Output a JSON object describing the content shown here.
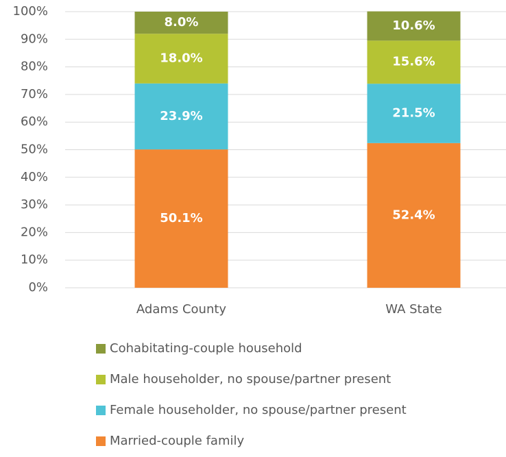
{
  "chart_data": {
    "type": "stacked-bar",
    "categories": [
      "Adams County",
      "WA State"
    ],
    "series": [
      {
        "name": "Married-couple family",
        "color": "#f28733",
        "values": [
          50.1,
          52.4
        ],
        "value_labels": [
          "50.1%",
          "52.4%"
        ]
      },
      {
        "name": "Female householder, no spouse/partner present",
        "color": "#4fc3d6",
        "values": [
          23.9,
          21.5
        ],
        "value_labels": [
          "23.9%",
          "21.5%"
        ]
      },
      {
        "name": "Male householder, no spouse/partner present",
        "color": "#b5c334",
        "values": [
          18.0,
          15.6
        ],
        "value_labels": [
          "18.0%",
          "15.6%"
        ]
      },
      {
        "name": "Cohabitating-couple household",
        "color": "#8a9a3b",
        "values": [
          8.0,
          10.6
        ],
        "value_labels": [
          "8.0%",
          "10.6%"
        ]
      }
    ],
    "ylim": [
      0,
      100
    ],
    "yticks": [
      {
        "value": 0,
        "label": "0%"
      },
      {
        "value": 10,
        "label": "10%"
      },
      {
        "value": 20,
        "label": "20%"
      },
      {
        "value": 30,
        "label": "30%"
      },
      {
        "value": 40,
        "label": "40%"
      },
      {
        "value": 50,
        "label": "50%"
      },
      {
        "value": 60,
        "label": "60%"
      },
      {
        "value": 70,
        "label": "70%"
      },
      {
        "value": 80,
        "label": "80%"
      },
      {
        "value": 90,
        "label": "90%"
      },
      {
        "value": 100,
        "label": "100%"
      }
    ],
    "grid": true
  }
}
